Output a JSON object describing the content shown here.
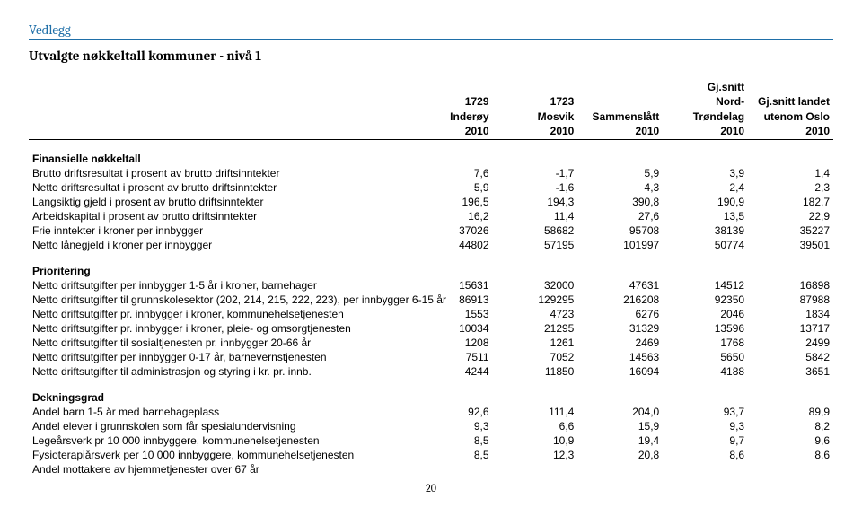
{
  "meta": {
    "vedlegg": "Vedlegg",
    "subtitle": "Utvalgte nøkkeltall kommuner - nivå 1",
    "page_number": "20"
  },
  "headers": {
    "col1": {
      "l1": "",
      "l2": "1729",
      "l3": "Inderøy",
      "l4": "2010"
    },
    "col2": {
      "l1": "",
      "l2": "1723",
      "l3": "Mosvik",
      "l4": "2010"
    },
    "col3": {
      "l1": "",
      "l2": "",
      "l3": "Sammenslått",
      "l4": "2010"
    },
    "col4": {
      "l1": "Gj.snitt",
      "l2": "Nord-",
      "l3": "Trøndelag",
      "l4": "2010"
    },
    "col5": {
      "l1": "",
      "l2": "Gj.snitt landet",
      "l3": "utenom Oslo",
      "l4": "2010"
    }
  },
  "sections": [
    {
      "title": "Finansielle nøkkeltall",
      "rows": [
        {
          "label": "Brutto driftsresultat i prosent av brutto driftsinntekter",
          "v": [
            "7,6",
            "-1,7",
            "5,9",
            "3,9",
            "1,4"
          ]
        },
        {
          "label": "Netto driftsresultat i prosent av brutto driftsinntekter",
          "v": [
            "5,9",
            "-1,6",
            "4,3",
            "2,4",
            "2,3"
          ]
        },
        {
          "label": "Langsiktig gjeld i prosent av brutto driftsinntekter",
          "v": [
            "196,5",
            "194,3",
            "390,8",
            "190,9",
            "182,7"
          ]
        },
        {
          "label": "Arbeidskapital i prosent av brutto driftsinntekter",
          "v": [
            "16,2",
            "11,4",
            "27,6",
            "13,5",
            "22,9"
          ]
        },
        {
          "label": "Frie inntekter i kroner per innbygger",
          "v": [
            "37026",
            "58682",
            "95708",
            "38139",
            "35227"
          ]
        },
        {
          "label": "Netto lånegjeld i kroner per innbygger",
          "v": [
            "44802",
            "57195",
            "101997",
            "50774",
            "39501"
          ]
        }
      ]
    },
    {
      "title": "Prioritering",
      "rows": [
        {
          "label": "Netto driftsutgifter per innbygger 1-5 år i kroner, barnehager",
          "v": [
            "15631",
            "32000",
            "47631",
            "14512",
            "16898"
          ]
        },
        {
          "label": "Netto driftsutgifter til grunnskolesektor (202, 214, 215, 222, 223), per innbygger 6-15 år",
          "v": [
            "86913",
            "129295",
            "216208",
            "92350",
            "87988"
          ]
        },
        {
          "label": "Netto driftsutgifter pr. innbygger i kroner, kommunehelsetjenesten",
          "v": [
            "1553",
            "4723",
            "6276",
            "2046",
            "1834"
          ]
        },
        {
          "label": "Netto driftsutgifter pr. innbygger i kroner, pleie- og omsorgtjenesten",
          "v": [
            "10034",
            "21295",
            "31329",
            "13596",
            "13717"
          ]
        },
        {
          "label": "Netto driftsutgifter til sosialtjenesten pr. innbygger 20-66 år",
          "v": [
            "1208",
            "1261",
            "2469",
            "1768",
            "2499"
          ]
        },
        {
          "label": "Netto driftsutgifter per innbygger 0-17 år, barnevernstjenesten",
          "v": [
            "7511",
            "7052",
            "14563",
            "5650",
            "5842"
          ]
        },
        {
          "label": "Netto driftsutgifter til administrasjon og styring i kr. pr. innb.",
          "v": [
            "4244",
            "11850",
            "16094",
            "4188",
            "3651"
          ]
        }
      ]
    },
    {
      "title": "Dekningsgrad",
      "rows": [
        {
          "label": "Andel barn 1-5 år med barnehageplass",
          "v": [
            "92,6",
            "111,4",
            "204,0",
            "93,7",
            "89,9"
          ]
        },
        {
          "label": "Andel elever i grunnskolen som får spesialundervisning",
          "v": [
            "9,3",
            "6,6",
            "15,9",
            "9,3",
            "8,2"
          ]
        },
        {
          "label": "Legeårsverk pr 10 000 innbyggere, kommunehelsetjenesten",
          "v": [
            "8,5",
            "10,9",
            "19,4",
            "9,7",
            "9,6"
          ]
        },
        {
          "label": "Fysioterapiårsverk per 10 000 innbyggere, kommunehelsetjenesten",
          "v": [
            "8,5",
            "12,3",
            "20,8",
            "8,6",
            "8,6"
          ]
        },
        {
          "label": "Andel mottakere av hjemmetjenester over 67 år",
          "v": [
            "",
            "",
            "",
            "",
            ""
          ]
        }
      ]
    }
  ]
}
